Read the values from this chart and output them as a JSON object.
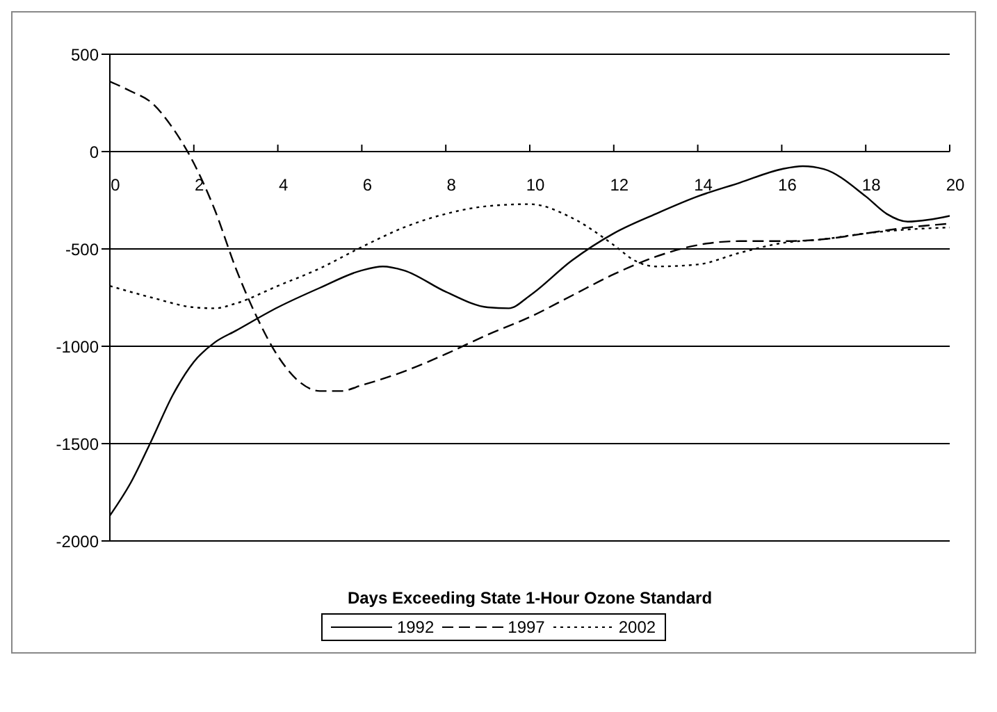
{
  "chart_data": {
    "type": "line",
    "xlabel": "Days Exceeding State 1-Hour Ozone Standard",
    "xlim": [
      0,
      20
    ],
    "xticks": [
      0,
      2,
      4,
      6,
      8,
      10,
      12,
      14,
      16,
      18,
      20
    ],
    "ylim": [
      -2000,
      500
    ],
    "yticks": [
      -2000,
      -1500,
      -1000,
      -500,
      0,
      500
    ],
    "grid": "y",
    "legend": "bottom",
    "marker": "none",
    "series": [
      {
        "name": "1992",
        "color": "#000000",
        "line_style": "solid",
        "x": [
          0,
          0.5,
          1,
          1.5,
          2,
          2.5,
          3,
          4,
          5,
          6,
          6.5,
          7,
          8,
          9,
          9.5,
          10,
          11,
          12,
          13,
          14,
          15,
          16,
          16.5,
          17,
          18,
          18.5,
          19,
          19.5,
          20
        ],
        "values": [
          -1870,
          -1700,
          -1480,
          -1250,
          -1080,
          -980,
          -920,
          -800,
          -700,
          -610,
          -590,
          -610,
          -720,
          -800,
          -805,
          -740,
          -560,
          -420,
          -320,
          -230,
          -160,
          -90,
          -75,
          -90,
          -230,
          -320,
          -360,
          -350,
          -330
        ]
      },
      {
        "name": "1997",
        "color": "#000000",
        "line_style": "dashed",
        "x": [
          0,
          0.5,
          1,
          1.5,
          2,
          2.5,
          3,
          3.5,
          4,
          4.5,
          5,
          5.5,
          6,
          7,
          8,
          9,
          10,
          11,
          12,
          13,
          14,
          15,
          16,
          17,
          18,
          19,
          20
        ],
        "values": [
          360,
          310,
          250,
          120,
          -60,
          -300,
          -600,
          -850,
          -1050,
          -1180,
          -1230,
          -1230,
          -1200,
          -1130,
          -1040,
          -940,
          -850,
          -740,
          -630,
          -540,
          -480,
          -460,
          -460,
          -450,
          -420,
          -390,
          -370
        ]
      },
      {
        "name": "2002",
        "color": "#000000",
        "line_style": "dotted",
        "x": [
          0,
          1,
          2,
          2.5,
          3,
          4,
          5,
          6,
          7,
          8,
          9,
          10,
          11,
          12,
          12.5,
          13,
          14,
          15,
          16,
          17,
          18,
          19,
          20
        ],
        "values": [
          -690,
          -750,
          -800,
          -805,
          -780,
          -690,
          -600,
          -490,
          -390,
          -320,
          -280,
          -270,
          -340,
          -480,
          -560,
          -590,
          -580,
          -520,
          -470,
          -450,
          -420,
          -400,
          -390
        ]
      }
    ]
  }
}
